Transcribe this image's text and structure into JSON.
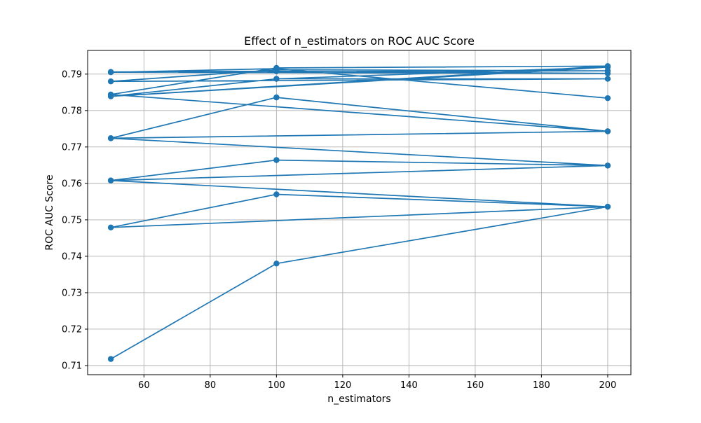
{
  "chart_data": {
    "type": "line",
    "title": "Effect of n_estimators on ROC AUC Score",
    "xlabel": "n_estimators",
    "ylabel": "ROC AUC Score",
    "xlim": [
      43,
      207
    ],
    "ylim": [
      0.7075,
      0.7965
    ],
    "xticks": [
      60,
      80,
      100,
      120,
      140,
      160,
      180,
      200
    ],
    "yticks": [
      0.71,
      0.72,
      0.73,
      0.74,
      0.75,
      0.76,
      0.77,
      0.78,
      0.79
    ],
    "grid": true,
    "legend": null,
    "series_color": "#1f77b4",
    "marker": "circle",
    "series": [
      {
        "x": [
          50,
          100,
          200,
          50,
          100,
          200,
          50,
          100,
          200,
          50,
          100,
          200,
          50,
          100,
          200,
          50,
          100,
          200,
          50,
          100,
          200,
          50,
          100,
          200,
          50,
          100,
          200,
          50,
          100,
          200,
          50,
          100,
          200,
          50,
          100,
          200
        ],
        "y": [
          0.7118,
          0.738,
          0.7536,
          0.7479,
          0.757,
          0.7536,
          0.7608,
          0.7664,
          0.7649,
          0.7608,
          0.7664,
          0.7649,
          0.7724,
          0.7836,
          0.7743,
          0.7724,
          0.7836,
          0.7743,
          0.7844,
          0.7917,
          0.7922,
          0.7839,
          0.7887,
          0.7919,
          0.7839,
          0.7887,
          0.7887,
          0.788,
          0.7912,
          0.7909,
          0.7906,
          0.7908,
          0.7902,
          0.7905,
          0.7915,
          0.7834
        ]
      }
    ]
  }
}
